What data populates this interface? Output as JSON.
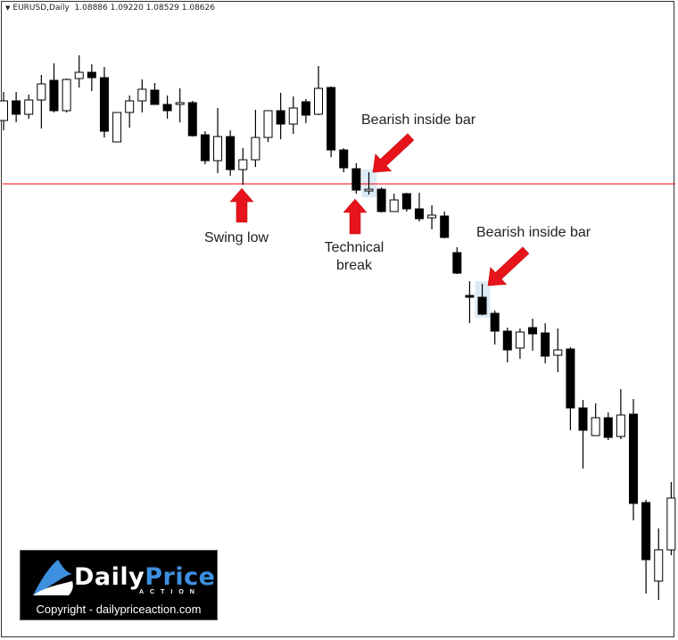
{
  "header": {
    "symbol": "EURUSD,Daily",
    "ohlc": "1.08886 1.09220 1.08529 1.08626"
  },
  "annotations": {
    "bearish_inside_bar_1": "Bearish inside bar",
    "swing_low": "Swing low",
    "technical_break_line1": "Technical",
    "technical_break_line2": "break",
    "bearish_inside_bar_2": "Bearish inside bar"
  },
  "logo": {
    "brand_part1": "Daily",
    "brand_part2": "Price",
    "sub": "ACTION",
    "copyright": "Copyright - dailypriceaction.com"
  },
  "colors": {
    "bull": "#ffffff",
    "bear": "#000000",
    "level_line": "#ff0000",
    "arrow": "#e8141b",
    "highlight": "#dceaf5",
    "brand_blue": "#3d8fe0"
  },
  "chart_data": {
    "type": "candlestick",
    "title": "",
    "grid": false,
    "ylim": [
      1.0594,
      1.1292
    ],
    "horizontal_line": 1.11,
    "highlighted_bars": [
      29,
      38
    ],
    "candles": [
      [
        1.1171,
        1.1203,
        1.116,
        1.1193
      ],
      [
        1.1193,
        1.1203,
        1.1169,
        1.1178
      ],
      [
        1.1178,
        1.12,
        1.1173,
        1.1194
      ],
      [
        1.1194,
        1.1222,
        1.1162,
        1.1212
      ],
      [
        1.1216,
        1.1235,
        1.118,
        1.1182
      ],
      [
        1.1182,
        1.1218,
        1.118,
        1.1217
      ],
      [
        1.1218,
        1.1244,
        1.1208,
        1.1225
      ],
      [
        1.1225,
        1.1234,
        1.1204,
        1.1219
      ],
      [
        1.1219,
        1.1231,
        1.1152,
        1.1159
      ],
      [
        1.1147,
        1.118,
        1.1147,
        1.118
      ],
      [
        1.118,
        1.1199,
        1.1163,
        1.1193
      ],
      [
        1.1193,
        1.1217,
        1.118,
        1.1206
      ],
      [
        1.1205,
        1.1213,
        1.1189,
        1.1189
      ],
      [
        1.1189,
        1.1199,
        1.1173,
        1.1182
      ],
      [
        1.1189,
        1.1207,
        1.1169,
        1.1191
      ],
      [
        1.1191,
        1.1193,
        1.1153,
        1.1154
      ],
      [
        1.1155,
        1.1159,
        1.1122,
        1.1126
      ],
      [
        1.1126,
        1.1185,
        1.1112,
        1.1153
      ],
      [
        1.1153,
        1.116,
        1.1109,
        1.1116
      ],
      [
        1.1116,
        1.114,
        1.1099,
        1.1127
      ],
      [
        1.1127,
        1.1183,
        1.1119,
        1.1152
      ],
      [
        1.1152,
        1.1182,
        1.1147,
        1.1182
      ],
      [
        1.1182,
        1.1202,
        1.115,
        1.1167
      ],
      [
        1.1167,
        1.1198,
        1.1156,
        1.1185
      ],
      [
        1.1192,
        1.1195,
        1.1168,
        1.1177
      ],
      [
        1.1178,
        1.1232,
        1.1177,
        1.1207
      ],
      [
        1.1208,
        1.1209,
        1.113,
        1.1138
      ],
      [
        1.1138,
        1.114,
        1.1113,
        1.1118
      ],
      [
        1.1117,
        1.1123,
        1.1089,
        1.1093
      ],
      [
        1.1092,
        1.1113,
        1.1088,
        1.1094
      ],
      [
        1.1094,
        1.1096,
        1.1068,
        1.1069
      ],
      [
        1.1069,
        1.1089,
        1.1069,
        1.1082
      ],
      [
        1.1089,
        1.109,
        1.1069,
        1.1072
      ],
      [
        1.1072,
        1.109,
        1.1058,
        1.1061
      ],
      [
        1.1062,
        1.1076,
        1.1049,
        1.1065
      ],
      [
        1.1064,
        1.1069,
        1.1039,
        1.104
      ],
      [
        1.1023,
        1.1029,
        1.0999,
        1.1
      ],
      [
        1.0975,
        1.0991,
        1.0944,
        1.0973
      ],
      [
        1.0973,
        1.0988,
        1.0953,
        1.0954
      ],
      [
        1.0955,
        1.0958,
        1.092,
        1.0935
      ],
      [
        1.0935,
        1.0939,
        1.09,
        1.0914
      ],
      [
        1.0916,
        1.0938,
        1.0904,
        1.0934
      ],
      [
        1.0939,
        1.0949,
        1.0913,
        1.0932
      ],
      [
        1.0933,
        1.0944,
        1.0899,
        1.0907
      ],
      [
        1.0908,
        1.0938,
        1.0889,
        1.0914
      ],
      [
        1.0915,
        1.0917,
        1.0824,
        1.0849
      ],
      [
        1.0849,
        1.0858,
        1.0781,
        1.0824
      ],
      [
        1.0818,
        1.0854,
        1.0818,
        1.0838
      ],
      [
        1.0838,
        1.0844,
        1.0813,
        1.0816
      ],
      [
        1.0817,
        1.087,
        1.0814,
        1.0841
      ],
      [
        1.0842,
        1.0859,
        1.0723,
        1.0742
      ],
      [
        1.0743,
        1.0746,
        1.0641,
        1.0679
      ],
      [
        1.0655,
        1.0714,
        1.0634,
        1.069
      ],
      [
        1.069,
        1.0766,
        1.0684,
        1.0748
      ]
    ]
  }
}
